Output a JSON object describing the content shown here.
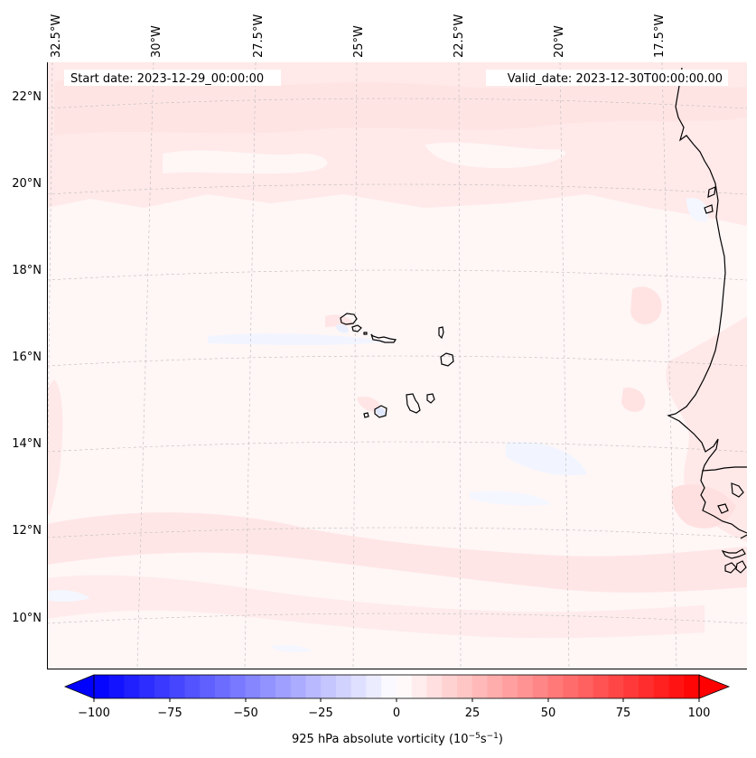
{
  "header": {
    "start_label": "Start date: 2023-12-29_00:00:00",
    "valid_label": "Valid_date: 2023-12-30T00:00:00.00"
  },
  "map": {
    "lon_labels": [
      "32.5°W",
      "30°W",
      "27.5°W",
      "25°W",
      "22.5°W",
      "20°W",
      "17.5°W"
    ],
    "lat_labels": [
      "22°N",
      "20°N",
      "18°N",
      "16°N",
      "14°N",
      "12°N",
      "10°N"
    ],
    "features": [
      "Cape Verde islands",
      "West African coastline"
    ]
  },
  "colorbar": {
    "ticks": [
      "−100",
      "−75",
      "−50",
      "−25",
      "0",
      "25",
      "50",
      "75",
      "100"
    ],
    "label_prefix": "925 hPa absolute vorticity (10",
    "label_exp1": "−5",
    "label_mid": "s",
    "label_exp2": "−1",
    "label_suffix": ")",
    "min": -100,
    "max": 100,
    "levels": 40,
    "color_negative": "#0000ff",
    "color_positive": "#ff0000"
  }
}
